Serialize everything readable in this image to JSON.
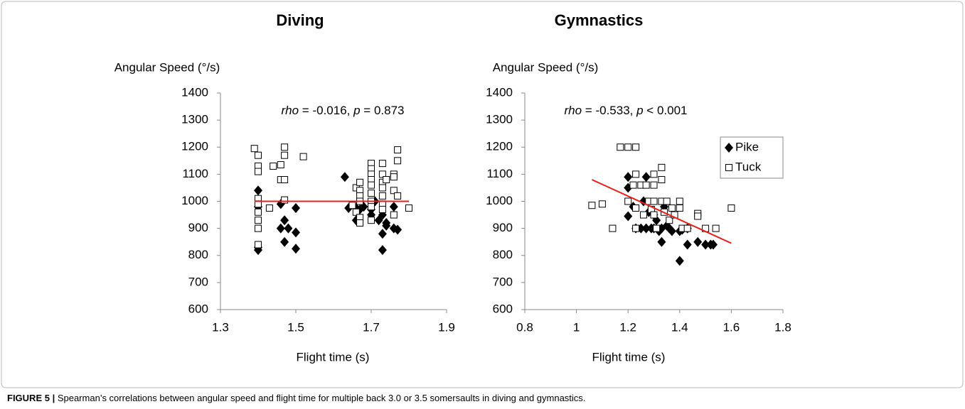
{
  "chart_data": [
    {
      "type": "scatter",
      "title": "Diving",
      "y_label": "Angular Speed (°/s)",
      "x_label": "Flight time (s)",
      "annotation_parts": [
        "rho",
        " = -0.016, ",
        "p",
        " = 0.873"
      ],
      "xlim": [
        1.3,
        1.9
      ],
      "xticks": [
        1.3,
        1.5,
        1.7,
        1.9
      ],
      "ylim": [
        600,
        1400
      ],
      "yticks": [
        600,
        700,
        800,
        900,
        1000,
        1100,
        1200,
        1300,
        1400
      ],
      "grid": false,
      "legend": false,
      "trendline": {
        "color": "#e8201c",
        "x": [
          1.39,
          1.8
        ],
        "y": [
          1000,
          1000
        ]
      },
      "series": [
        {
          "name": "Pike",
          "color": "#000000",
          "marker": "diamond",
          "x": [
            1.4,
            1.4,
            1.4,
            1.4,
            1.46,
            1.46,
            1.47,
            1.47,
            1.48,
            1.5,
            1.5,
            1.5,
            1.63,
            1.64,
            1.66,
            1.66,
            1.67,
            1.68,
            1.7,
            1.7,
            1.71,
            1.72,
            1.73,
            1.73,
            1.73,
            1.74,
            1.74,
            1.76,
            1.76,
            1.77
          ],
          "values": [
            820,
            830,
            980,
            1040,
            900,
            990,
            850,
            930,
            900,
            825,
            885,
            975,
            1090,
            975,
            930,
            975,
            970,
            980,
            950,
            970,
            1000,
            930,
            820,
            880,
            950,
            910,
            920,
            900,
            980,
            895
          ]
        },
        {
          "name": "Tuck",
          "color": "#000000",
          "marker": "square",
          "x": [
            1.39,
            1.4,
            1.4,
            1.4,
            1.4,
            1.4,
            1.4,
            1.4,
            1.4,
            1.4,
            1.43,
            1.44,
            1.46,
            1.46,
            1.47,
            1.47,
            1.47,
            1.47,
            1.52,
            1.65,
            1.66,
            1.66,
            1.67,
            1.67,
            1.67,
            1.67,
            1.67,
            1.67,
            1.7,
            1.7,
            1.7,
            1.7,
            1.7,
            1.7,
            1.7,
            1.7,
            1.7,
            1.73,
            1.73,
            1.73,
            1.73,
            1.73,
            1.73,
            1.73,
            1.74,
            1.76,
            1.76,
            1.76,
            1.76,
            1.77,
            1.77,
            1.77,
            1.8
          ],
          "values": [
            1195,
            1170,
            1130,
            1110,
            1010,
            990,
            960,
            930,
            900,
            840,
            975,
            1130,
            1135,
            1080,
            1200,
            1170,
            1080,
            1005,
            1165,
            985,
            1050,
            960,
            1070,
            1040,
            1020,
            1000,
            940,
            920,
            1140,
            1120,
            1100,
            1080,
            1060,
            1030,
            1000,
            980,
            930,
            1140,
            1100,
            1070,
            1050,
            1020,
            990,
            970,
            1080,
            1100,
            1090,
            1040,
            950,
            1190,
            1150,
            1020,
            975
          ]
        }
      ]
    },
    {
      "type": "scatter",
      "title": "Gymnastics",
      "y_label": "Angular Speed (°/s)",
      "x_label": "Flight time (s)",
      "annotation_parts": [
        "rho",
        " = -0.533, ",
        "p",
        " < 0.001"
      ],
      "xlim": [
        0.8,
        1.8
      ],
      "xticks": [
        0.8,
        1,
        1.2,
        1.4,
        1.6,
        1.8
      ],
      "ylim": [
        600,
        1400
      ],
      "yticks": [
        600,
        700,
        800,
        900,
        1000,
        1100,
        1200,
        1300,
        1400
      ],
      "grid": false,
      "legend": "upper right",
      "trendline": {
        "color": "#e8201c",
        "x": [
          1.06,
          1.6
        ],
        "y": [
          1080,
          845
        ]
      },
      "series": [
        {
          "name": "Pike",
          "color": "#000000",
          "marker": "diamond",
          "x": [
            1.2,
            1.2,
            1.2,
            1.22,
            1.23,
            1.25,
            1.26,
            1.27,
            1.27,
            1.28,
            1.29,
            1.3,
            1.3,
            1.31,
            1.32,
            1.33,
            1.33,
            1.34,
            1.35,
            1.36,
            1.37,
            1.4,
            1.4,
            1.41,
            1.43,
            1.43,
            1.47,
            1.5,
            1.52,
            1.53
          ],
          "values": [
            945,
            1050,
            1090,
            980,
            900,
            900,
            1000,
            1090,
            900,
            960,
            900,
            950,
            900,
            930,
            890,
            850,
            900,
            980,
            910,
            900,
            890,
            780,
            890,
            895,
            840,
            900,
            850,
            840,
            840,
            840
          ]
        },
        {
          "name": "Tuck",
          "color": "#000000",
          "marker": "square",
          "x": [
            1.06,
            1.1,
            1.14,
            1.17,
            1.2,
            1.23,
            1.2,
            1.22,
            1.23,
            1.23,
            1.23,
            1.25,
            1.26,
            1.27,
            1.28,
            1.29,
            1.3,
            1.3,
            1.3,
            1.3,
            1.31,
            1.33,
            1.33,
            1.33,
            1.34,
            1.35,
            1.36,
            1.37,
            1.38,
            1.4,
            1.4,
            1.41,
            1.43,
            1.47,
            1.47,
            1.5,
            1.54,
            1.6
          ],
          "values": [
            985,
            990,
            900,
            1200,
            1200,
            1200,
            1000,
            1060,
            1100,
            975,
            900,
            1060,
            950,
            1060,
            1000,
            970,
            1100,
            1060,
            1000,
            950,
            900,
            1125,
            1080,
            1000,
            960,
            1000,
            930,
            975,
            950,
            1000,
            975,
            900,
            900,
            955,
            945,
            900,
            900,
            975
          ]
        }
      ]
    }
  ],
  "caption": {
    "label": "FIGURE 5 |",
    "text": " Spearman’s correlations between angular speed and flight time for multiple back 3.0 or 3.5 somersaults in diving and gymnastics."
  }
}
